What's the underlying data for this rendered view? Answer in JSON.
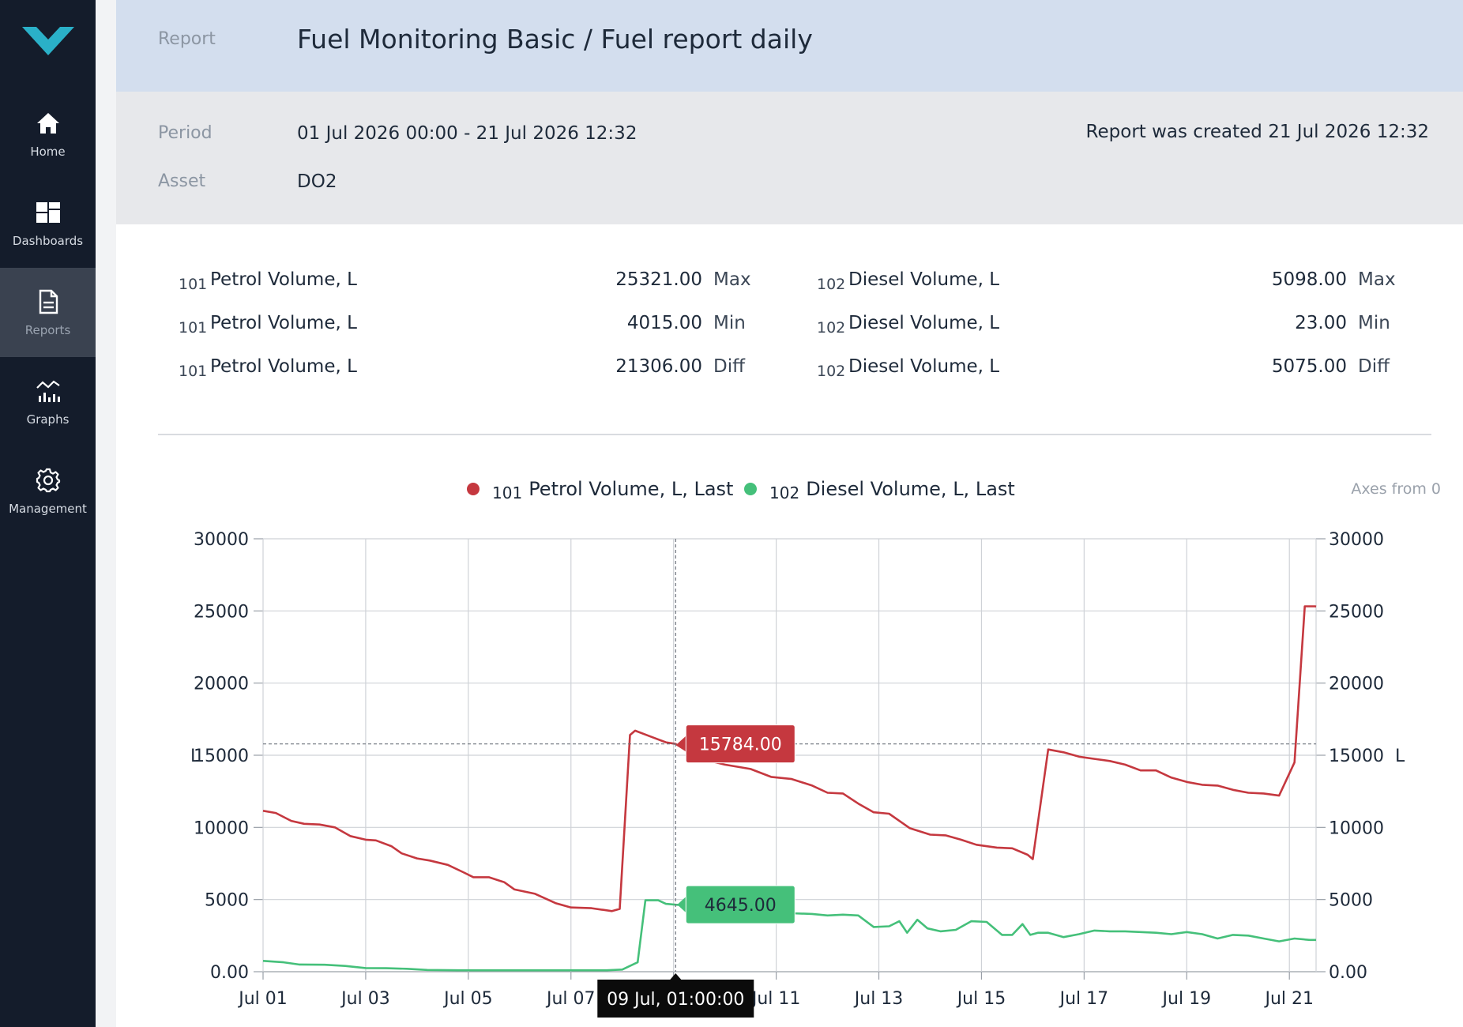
{
  "sidebar": {
    "items": [
      {
        "label": "Home",
        "icon": "home-icon"
      },
      {
        "label": "Dashboards",
        "icon": "dashboards-icon"
      },
      {
        "label": "Reports",
        "icon": "reports-icon",
        "active": true
      },
      {
        "label": "Graphs",
        "icon": "graphs-icon"
      },
      {
        "label": "Management",
        "icon": "gear-icon"
      }
    ]
  },
  "header": {
    "label": "Report",
    "title": "Fuel Monitoring Basic / Fuel report daily"
  },
  "info": {
    "period_label": "Period",
    "period_value": "01 Jul 2026 00:00 - 21 Jul 2026 12:32",
    "asset_label": "Asset",
    "asset_value": "DO2",
    "created": "Report was created 21 Jul 2026 12:32"
  },
  "summary": {
    "left": [
      {
        "id": "101",
        "name": "Petrol Volume, L",
        "value": "25321.00",
        "unit": "Max"
      },
      {
        "id": "101",
        "name": "Petrol Volume, L",
        "value": "4015.00",
        "unit": "Min"
      },
      {
        "id": "101",
        "name": "Petrol Volume, L",
        "value": "21306.00",
        "unit": "Diff"
      }
    ],
    "right": [
      {
        "id": "102",
        "name": "Diesel Volume, L",
        "value": "5098.00",
        "unit": "Max"
      },
      {
        "id": "102",
        "name": "Diesel Volume, L",
        "value": "23.00",
        "unit": "Min"
      },
      {
        "id": "102",
        "name": "Diesel Volume, L",
        "value": "5075.00",
        "unit": "Diff"
      }
    ]
  },
  "legend": {
    "petrol": {
      "id": "101",
      "name": "Petrol Volume, L, Last"
    },
    "diesel": {
      "id": "102",
      "name": "Diesel Volume, L, Last"
    },
    "axes_toggle": "Axes from 0"
  },
  "colors": {
    "petrol": "#c5383f",
    "diesel": "#45c07a",
    "sidebar_bg": "#141c2b",
    "header_bg": "#d3deee",
    "logo": "#2ab0c8"
  },
  "chart_data": {
    "type": "line",
    "x_start": "2026-07-01",
    "x_end": "2026-07-21 12:32",
    "xlabels": [
      "Jul 01",
      "Jul 03",
      "Jul 05",
      "Jul 07",
      "Jul 09",
      "Jul 11",
      "Jul 13",
      "Jul 15",
      "Jul 17",
      "Jul 19",
      "Jul 21"
    ],
    "yticks": [
      "0.00",
      "5000",
      "10000",
      "15000",
      "20000",
      "25000",
      "30000"
    ],
    "ylim": [
      0,
      30000
    ],
    "ylabel_left": "L",
    "ylabel_right": "L",
    "grid": true,
    "legend_position": "top-center",
    "tooltip": {
      "time": "09 Jul, 01:00:00",
      "petrol": "15784.00",
      "diesel": "4645.00",
      "x": [
        8.04,
        8.04
      ]
    },
    "series": [
      {
        "name": "Petrol Volume, L, Last",
        "x": [
          0,
          0.25,
          0.55,
          0.8,
          1.1,
          1.4,
          1.7,
          2.0,
          2.2,
          2.5,
          2.7,
          3.0,
          3.25,
          3.6,
          3.9,
          4.1,
          4.4,
          4.7,
          4.9,
          5.3,
          5.7,
          6.0,
          6.4,
          6.8,
          6.95,
          7.15,
          7.25,
          7.55,
          7.85,
          8.04,
          8.3,
          8.6,
          9.0,
          9.5,
          9.9,
          10.3,
          10.7,
          11.0,
          11.3,
          11.6,
          11.9,
          12.2,
          12.6,
          13.0,
          13.3,
          13.6,
          13.9,
          14.3,
          14.6,
          14.9,
          15.0,
          15.3,
          15.6,
          15.9,
          16.2,
          16.5,
          16.8,
          17.1,
          17.4,
          17.7,
          18.0,
          18.3,
          18.6,
          18.9,
          19.2,
          19.5,
          19.8,
          20.1,
          20.3,
          20.5,
          20.52
        ],
        "values": [
          11150,
          11000,
          10450,
          10250,
          10200,
          10000,
          9400,
          9150,
          9100,
          8700,
          8200,
          7850,
          7700,
          7400,
          6900,
          6550,
          6550,
          6200,
          5700,
          5400,
          4750,
          4450,
          4400,
          4200,
          4350,
          16400,
          16700,
          16300,
          15900,
          15784,
          15200,
          14700,
          14350,
          14050,
          13500,
          13350,
          12900,
          12400,
          12350,
          11650,
          11050,
          10950,
          9950,
          9500,
          9450,
          9150,
          8800,
          8600,
          8550,
          8100,
          7800,
          15400,
          15200,
          14900,
          14750,
          14600,
          14350,
          13950,
          13950,
          13450,
          13150,
          12950,
          12900,
          12600,
          12400,
          12350,
          12200,
          14500,
          25321,
          25321,
          25300
        ]
      },
      {
        "name": "Diesel Volume, L, Last",
        "x": [
          0,
          0.4,
          0.7,
          1.2,
          1.6,
          2.0,
          2.4,
          2.8,
          3.2,
          3.8,
          4.4,
          5.0,
          5.6,
          6.2,
          6.7,
          7.0,
          7.3,
          7.45,
          7.7,
          7.85,
          8.04,
          8.5,
          9.0,
          9.5,
          9.9,
          10.3,
          10.7,
          11.0,
          11.3,
          11.6,
          11.9,
          12.2,
          12.4,
          12.55,
          12.75,
          12.95,
          13.2,
          13.5,
          13.8,
          14.1,
          14.4,
          14.6,
          14.8,
          14.95,
          15.1,
          15.3,
          15.6,
          15.9,
          16.2,
          16.5,
          16.8,
          17.1,
          17.4,
          17.7,
          18.0,
          18.3,
          18.6,
          18.9,
          19.2,
          19.5,
          19.8,
          20.1,
          20.4,
          20.52
        ],
        "values": [
          750,
          650,
          500,
          480,
          400,
          250,
          240,
          200,
          120,
          100,
          100,
          100,
          100,
          100,
          100,
          150,
          650,
          4950,
          4950,
          4700,
          4645,
          4550,
          4400,
          4200,
          4150,
          4050,
          4000,
          3900,
          3950,
          3900,
          3100,
          3150,
          3500,
          2700,
          3600,
          3000,
          2800,
          2900,
          3500,
          3450,
          2550,
          2550,
          3300,
          2550,
          2700,
          2700,
          2400,
          2600,
          2850,
          2800,
          2800,
          2750,
          2700,
          2600,
          2750,
          2600,
          2300,
          2550,
          2500,
          2300,
          2100,
          2300,
          2200,
          2200
        ]
      }
    ]
  }
}
